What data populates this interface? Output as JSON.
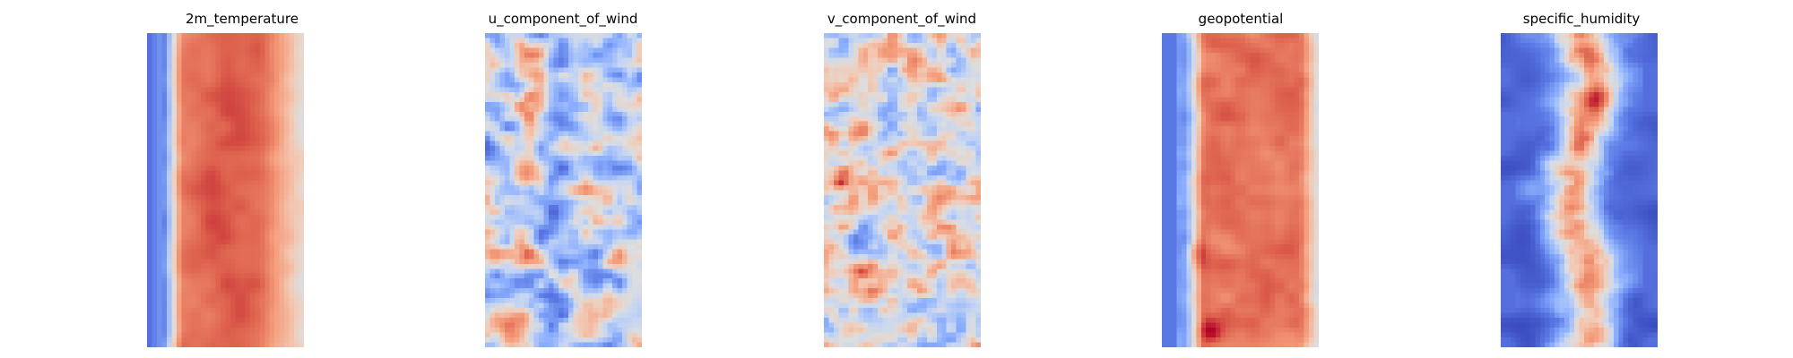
{
  "colors": {
    "background": "#ffffff",
    "colormap": "coolwarm",
    "cold": "#3b4cc0",
    "neutral": "#dddddd",
    "warm": "#b40426"
  },
  "chart_data": [
    {
      "type": "heatmap",
      "title": "2m_temperature",
      "colormap": "coolwarm",
      "axes": "off",
      "grid": false
    },
    {
      "type": "heatmap",
      "title": "u_component_of_wind",
      "colormap": "coolwarm",
      "axes": "off",
      "grid": false
    },
    {
      "type": "heatmap",
      "title": "v_component_of_wind",
      "colormap": "coolwarm",
      "axes": "off",
      "grid": false
    },
    {
      "type": "heatmap",
      "title": "geopotential",
      "colormap": "coolwarm",
      "axes": "off",
      "grid": false
    },
    {
      "type": "heatmap",
      "title": "specific_humidity",
      "colormap": "coolwarm",
      "axes": "off",
      "grid": false
    }
  ]
}
